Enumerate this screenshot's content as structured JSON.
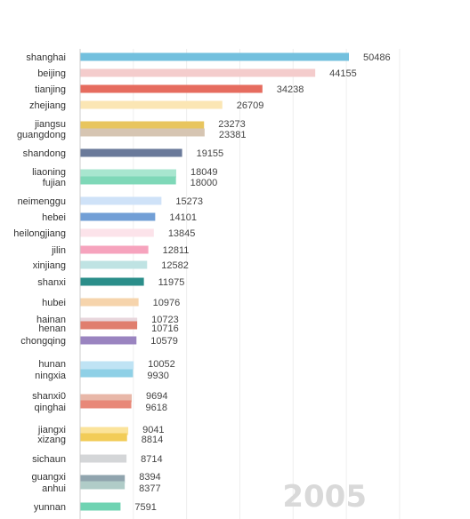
{
  "chart_data": {
    "type": "bar",
    "orientation": "horizontal",
    "year_label": "2005",
    "grid": true,
    "xlim": [
      0,
      60000
    ],
    "rows": [
      {
        "category": "shanghai",
        "value": 50486,
        "color": "#73c0de"
      },
      {
        "category": "beijing",
        "value": 44155,
        "color": "#f4cccc"
      },
      {
        "category": "tianjing",
        "value": 34238,
        "color": "#e66c5f"
      },
      {
        "category": "zhejiang",
        "value": 26709,
        "color": "#fbe6b4"
      },
      {
        "category": "jiangsu",
        "value": 23273,
        "color": "#e8c55e"
      },
      {
        "category": "guangdong",
        "value": 23381,
        "color": "#d6c5b2"
      },
      {
        "category": "shandong",
        "value": 19155,
        "color": "#6a7a9a"
      },
      {
        "category": "liaoning",
        "value": 18049,
        "color": "#a8e6cf"
      },
      {
        "category": "fujian",
        "value": 18000,
        "color": "#7fd8b8"
      },
      {
        "category": "neimenggu",
        "value": 15273,
        "color": "#cfe2f8"
      },
      {
        "category": "hebei",
        "value": 14101,
        "color": "#729fd6"
      },
      {
        "category": "heilongjiang",
        "value": 13845,
        "color": "#fce3ea"
      },
      {
        "category": "jilin",
        "value": 12811,
        "color": "#f6a3bd"
      },
      {
        "category": "xinjiang",
        "value": 12582,
        "color": "#bfe3e3"
      },
      {
        "category": "shanxi",
        "value": 11975,
        "color": "#2b8e8a"
      },
      {
        "category": "hubei",
        "value": 10976,
        "color": "#f6d4ac"
      },
      {
        "category": "hainan",
        "value": 10723,
        "color": "#e8d6dc"
      },
      {
        "category": "henan",
        "value": 10716,
        "color": "#e07e6e"
      },
      {
        "category": "chongqing",
        "value": 10579,
        "color": "#9a84c0"
      },
      {
        "category": "hunan",
        "value": 10052,
        "color": "#bfe3f4"
      },
      {
        "category": "ningxia",
        "value": 9930,
        "color": "#8fd0e6"
      },
      {
        "category": "shanxi0",
        "value": 9694,
        "color": "#e8b7a8"
      },
      {
        "category": "qinghai",
        "value": 9618,
        "color": "#e88878"
      },
      {
        "category": "jiangxi",
        "value": 9041,
        "color": "#fbe39a"
      },
      {
        "category": "xizang",
        "value": 8814,
        "color": "#f2cc58"
      },
      {
        "category": "sichaun",
        "value": 8714,
        "color": "#d4d6d8"
      },
      {
        "category": "guangxi",
        "value": 8394,
        "color": "#90a4ae"
      },
      {
        "category": "anhui",
        "value": 8377,
        "color": "#b0ccc8"
      },
      {
        "category": "yunnan",
        "value": 7591,
        "color": "#6fd3b2"
      }
    ]
  }
}
